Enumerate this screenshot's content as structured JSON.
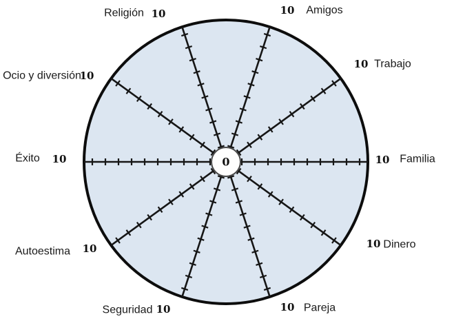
{
  "diagram": {
    "type": "wheel-of-life",
    "center_label": "0",
    "scale": {
      "min": 0,
      "max": 10,
      "tick_step": 1,
      "ticks_per_spoke": 10
    },
    "spokes": [
      {
        "name": "Familia",
        "max_label": "10"
      },
      {
        "name": "Trabajo",
        "max_label": "10"
      },
      {
        "name": "Amigos",
        "max_label": "10"
      },
      {
        "name": "Religión",
        "max_label": "10"
      },
      {
        "name": "Ocio y diversión",
        "max_label": "10"
      },
      {
        "name": "Éxito",
        "max_label": "10"
      },
      {
        "name": "Autoestima",
        "max_label": "10"
      },
      {
        "name": "Seguridad",
        "max_label": "10"
      },
      {
        "name": "Pareja",
        "max_label": "10"
      },
      {
        "name": "Dinero",
        "max_label": "10"
      }
    ],
    "colors": {
      "wheel_fill": "#dce6f1",
      "wheel_stroke": "#0d0d0d",
      "spoke_stroke": "#161616",
      "hub_fill": "#fefefe",
      "hub_stroke": "#474747",
      "text": "#1a1a1a"
    }
  }
}
